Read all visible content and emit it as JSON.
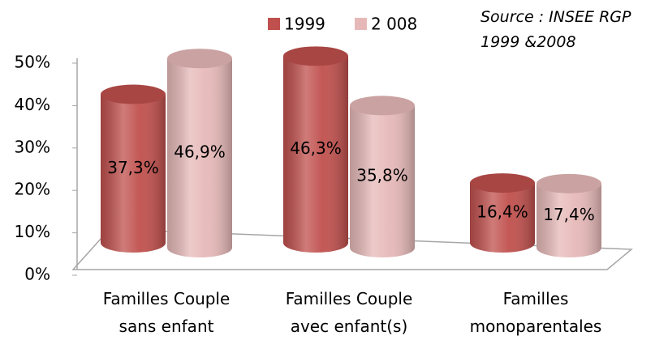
{
  "chart_data": {
    "type": "bar",
    "annotation": "Source : INSEE RGP 1999 &2008",
    "categories": [
      "Familles Couple sans enfant",
      "Familles Couple avec enfant(s)",
      "Familles monoparentales"
    ],
    "series": [
      {
        "name": "1999",
        "color": "#c0504d",
        "values": [
          37.3,
          46.3,
          16.4
        ],
        "value_labels": [
          "37,3%",
          "46,3%",
          "16,4%"
        ]
      },
      {
        "name": "2 008",
        "color": "#e6b9b8",
        "values": [
          46.9,
          35.8,
          17.4
        ],
        "value_labels": [
          "46,9%",
          "35,8%",
          "17,4%"
        ]
      }
    ],
    "ylim": [
      0,
      50
    ],
    "yticks": [
      {
        "value": 0,
        "label": "0%"
      },
      {
        "value": 10,
        "label": "10%"
      },
      {
        "value": 20,
        "label": "20%"
      },
      {
        "value": 30,
        "label": "30%"
      },
      {
        "value": 40,
        "label": "40%"
      },
      {
        "value": 50,
        "label": "50%"
      }
    ],
    "legend": "top"
  }
}
